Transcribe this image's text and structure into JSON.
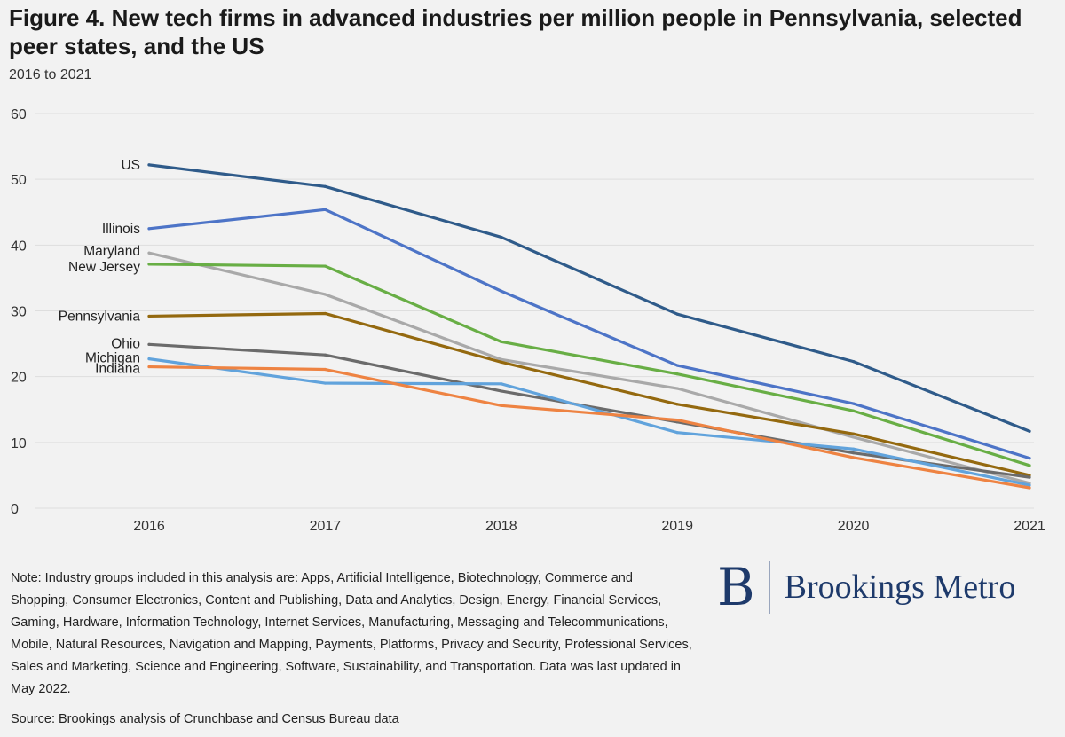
{
  "header": {
    "title": "Figure 4. New tech firms in advanced industries per million people in Pennsylvania, selected peer states, and the US",
    "subtitle": "2016 to 2021"
  },
  "footer": {
    "note": "Note: Industry groups included in this analysis are: Apps, Artificial Intelligence, Biotechnology, Commerce and Shopping, Consumer Electronics, Content and Publishing, Data and Analytics, Design, Energy, Financial Services, Gaming, Hardware, Information Technology, Internet Services, Manufacturing, Messaging and Telecommunications, Mobile, Natural Resources, Navigation and Mapping, Payments, Platforms, Privacy and Security, Professional Services, Sales and Marketing, Science and Engineering, Software, Sustainability, and Transportation. Data was last updated in May 2022.",
    "source": "Source: Brookings analysis of Crunchbase and Census Bureau data"
  },
  "logo": {
    "mark": "B",
    "text": "Brookings Metro"
  },
  "chart_data": {
    "type": "line",
    "title": "Figure 4. New tech firms in advanced industries per million people in Pennsylvania, selected peer states, and the US",
    "subtitle": "2016 to 2021",
    "xlabel": "",
    "ylabel": "",
    "x": [
      "2016",
      "2017",
      "2018",
      "2019",
      "2020",
      "2021"
    ],
    "ylim": [
      0,
      60
    ],
    "yticks": [
      0,
      10,
      20,
      30,
      40,
      50,
      60
    ],
    "grid": true,
    "legend": "inline labels at left end of each line",
    "series": [
      {
        "name": "US",
        "color": "#2f5b8a",
        "values": [
          52.2,
          48.9,
          41.2,
          29.5,
          22.3,
          11.7
        ]
      },
      {
        "name": "Illinois",
        "color": "#4d74c7",
        "values": [
          42.5,
          45.4,
          33.0,
          21.7,
          15.9,
          7.6
        ]
      },
      {
        "name": "Maryland",
        "color": "#a9a9a9",
        "values": [
          38.8,
          32.5,
          22.6,
          18.2,
          10.8,
          3.8
        ]
      },
      {
        "name": "New Jersey",
        "color": "#68ae45",
        "values": [
          37.1,
          36.8,
          25.3,
          20.4,
          14.8,
          6.5
        ]
      },
      {
        "name": "Pennsylvania",
        "color": "#94690f",
        "values": [
          29.2,
          29.6,
          22.2,
          15.8,
          11.3,
          5.0
        ]
      },
      {
        "name": "Ohio",
        "color": "#6b6b6b",
        "values": [
          24.9,
          23.3,
          17.8,
          13.1,
          8.4,
          4.7
        ]
      },
      {
        "name": "Michigan",
        "color": "#61a3dc",
        "values": [
          22.7,
          19.0,
          18.9,
          11.5,
          9.0,
          3.5
        ]
      },
      {
        "name": "Indiana",
        "color": "#ee8342",
        "values": [
          21.5,
          21.1,
          15.6,
          13.4,
          7.7,
          3.1
        ]
      }
    ]
  }
}
